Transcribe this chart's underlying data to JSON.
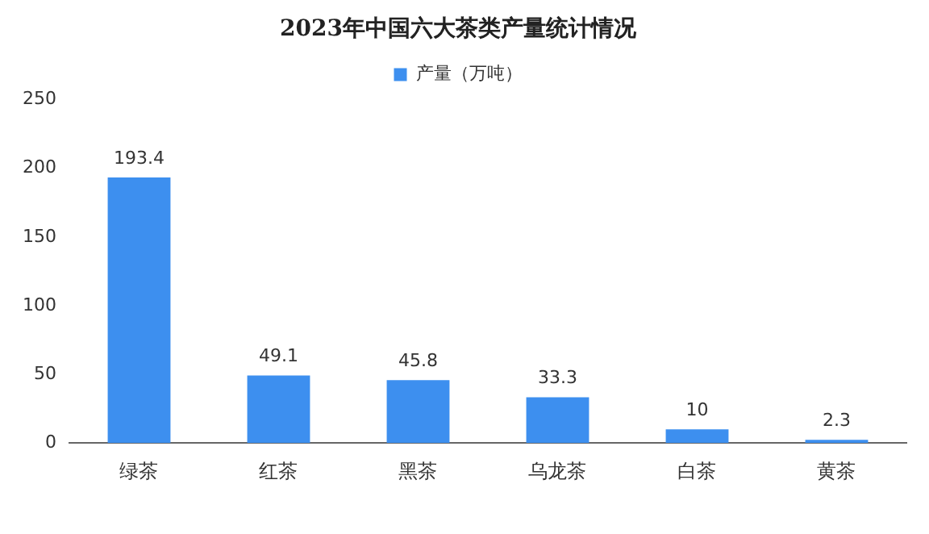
{
  "chart_data": {
    "type": "bar",
    "title": "2023年中国六大茶类产量统计情况",
    "categories": [
      "绿茶",
      "红茶",
      "黑茶",
      "乌龙茶",
      "白茶",
      "黄茶"
    ],
    "series": [
      {
        "name": "产量（万吨）",
        "color": "#3d8fef",
        "values": [
          193.4,
          49.1,
          45.8,
          33.3,
          10,
          2.3
        ]
      }
    ],
    "ylim": [
      0,
      250
    ],
    "yticks": [
      0,
      50,
      100,
      150,
      200,
      250
    ],
    "grid": false,
    "legend": "top",
    "data_labels": true
  }
}
